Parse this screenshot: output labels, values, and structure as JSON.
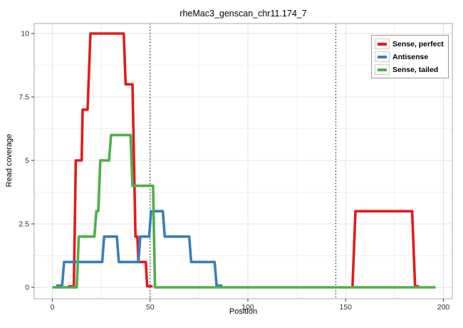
{
  "chart_data": {
    "type": "line",
    "title": "rheMac3_genscan_chr11.174_7",
    "xlabel": "Position",
    "ylabel": "Read coverage",
    "x_ticks": [
      0,
      50,
      100,
      150,
      200
    ],
    "y_ticks": [
      0,
      2.5,
      5,
      7.5,
      10
    ],
    "x_minor_ticks": [
      25,
      75,
      125,
      175
    ],
    "y_minor_ticks": [
      1.25,
      3.75,
      6.25,
      8.75
    ],
    "xlim": [
      -10,
      210
    ],
    "ylim": [
      -0.45,
      10.45
    ],
    "grid": "major+minor",
    "legend_position": "top-right",
    "vertical_dotted_lines_x": [
      50,
      145
    ],
    "series": [
      {
        "name": "Sense, perfect",
        "color": "#E41A1C",
        "segments": [
          [
            [
              8,
              0
            ],
            [
              11,
              0
            ],
            [
              12,
              5
            ],
            [
              15,
              5
            ],
            [
              15.5,
              7
            ],
            [
              18,
              7
            ],
            [
              19.5,
              10
            ],
            [
              36.5,
              10
            ],
            [
              37.5,
              8
            ],
            [
              41,
              8
            ],
            [
              42.5,
              2
            ],
            [
              43.5,
              2
            ],
            [
              44,
              1
            ],
            [
              47.8,
              1
            ],
            [
              48.5,
              0
            ],
            [
              51.3,
              0
            ]
          ],
          [
            [
              153.5,
              0
            ],
            [
              155,
              3
            ],
            [
              184,
              3
            ],
            [
              185.5,
              0
            ],
            [
              187.5,
              0
            ]
          ]
        ]
      },
      {
        "name": "Antisense",
        "color": "#377EB8",
        "segments": [
          [
            [
              2,
              0
            ],
            [
              5,
              0
            ],
            [
              6,
              1
            ],
            [
              25.5,
              1
            ],
            [
              26.5,
              2
            ],
            [
              33,
              2
            ],
            [
              34,
              1
            ],
            [
              44,
              1
            ],
            [
              45,
              2
            ],
            [
              49.5,
              2
            ],
            [
              50.5,
              3
            ],
            [
              56.5,
              3
            ],
            [
              57.5,
              2
            ],
            [
              70,
              2
            ],
            [
              71,
              1
            ],
            [
              83,
              1
            ],
            [
              84,
              0
            ],
            [
              87,
              0
            ]
          ]
        ]
      },
      {
        "name": "Sense, tailed",
        "color": "#4DAF4A",
        "segments": [
          [
            [
              0,
              0
            ],
            [
              12.5,
              0
            ],
            [
              13.5,
              2
            ],
            [
              21.5,
              2
            ],
            [
              22.5,
              3
            ],
            [
              23.5,
              3
            ],
            [
              24.5,
              5
            ],
            [
              29,
              5
            ],
            [
              30,
              6
            ],
            [
              40,
              6
            ],
            [
              41,
              4
            ],
            [
              51.5,
              4
            ],
            [
              52.5,
              0
            ],
            [
              196,
              0
            ]
          ]
        ]
      }
    ],
    "colors": {
      "major_grid": "#e3e3e3",
      "minor_grid": "#f2f2f2",
      "panel_border": "#ababab",
      "tick": "#333333",
      "tick_label": "#303030",
      "dotted_line": "#000000"
    }
  }
}
